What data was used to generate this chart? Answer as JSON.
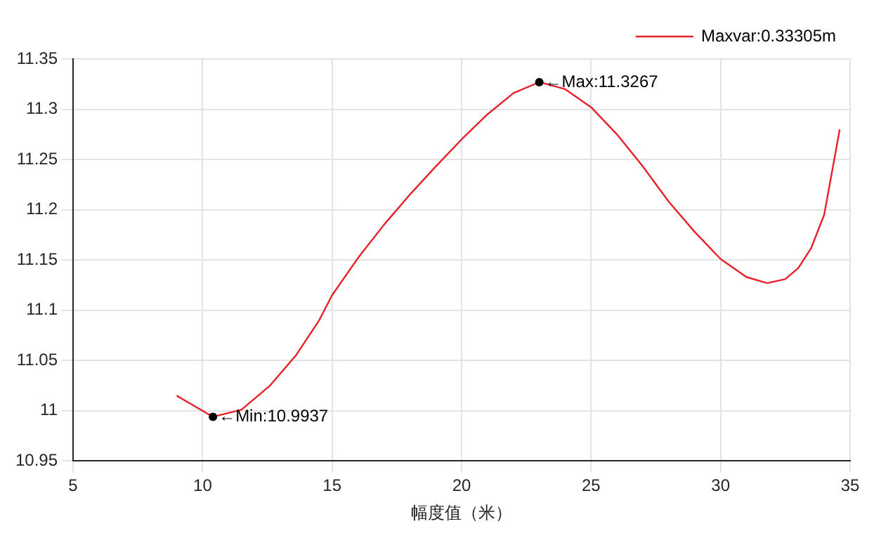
{
  "chart_data": {
    "type": "line",
    "xlabel": "幅度值（米）",
    "x": [
      9,
      10.4,
      11.5,
      12.6,
      13.6,
      14.5,
      15,
      16,
      17,
      18,
      19,
      20,
      21,
      22,
      23,
      24,
      25,
      26,
      27,
      28,
      29,
      30,
      31,
      31.8,
      32.5,
      33,
      33.5,
      34,
      34.6
    ],
    "series": [
      {
        "name": "Maxvar:0.33305m",
        "color": "#e8202a",
        "values": [
          11.015,
          10.994,
          11.001,
          11.025,
          11.055,
          11.09,
          11.115,
          11.152,
          11.185,
          11.215,
          11.243,
          11.27,
          11.295,
          11.316,
          11.327,
          11.32,
          11.302,
          11.275,
          11.243,
          11.208,
          11.178,
          11.151,
          11.133,
          11.127,
          11.131,
          11.142,
          11.162,
          11.195,
          11.28
        ]
      }
    ],
    "annotations": [
      {
        "text": "←Min:10.9937",
        "x": 10.4,
        "y": 10.994
      },
      {
        "text": "←Max:11.3267",
        "x": 23,
        "y": 11.327
      }
    ],
    "xlim": [
      5,
      35
    ],
    "xticks": [
      5,
      10,
      15,
      20,
      25,
      30,
      35
    ],
    "ylim": [
      10.95,
      11.35
    ],
    "yticks": [
      10.95,
      11,
      11.05,
      11.1,
      11.15,
      11.2,
      11.25,
      11.3,
      11.35
    ],
    "grid": true,
    "legend": "top right",
    "marker": "none",
    "line_style": "solid"
  }
}
